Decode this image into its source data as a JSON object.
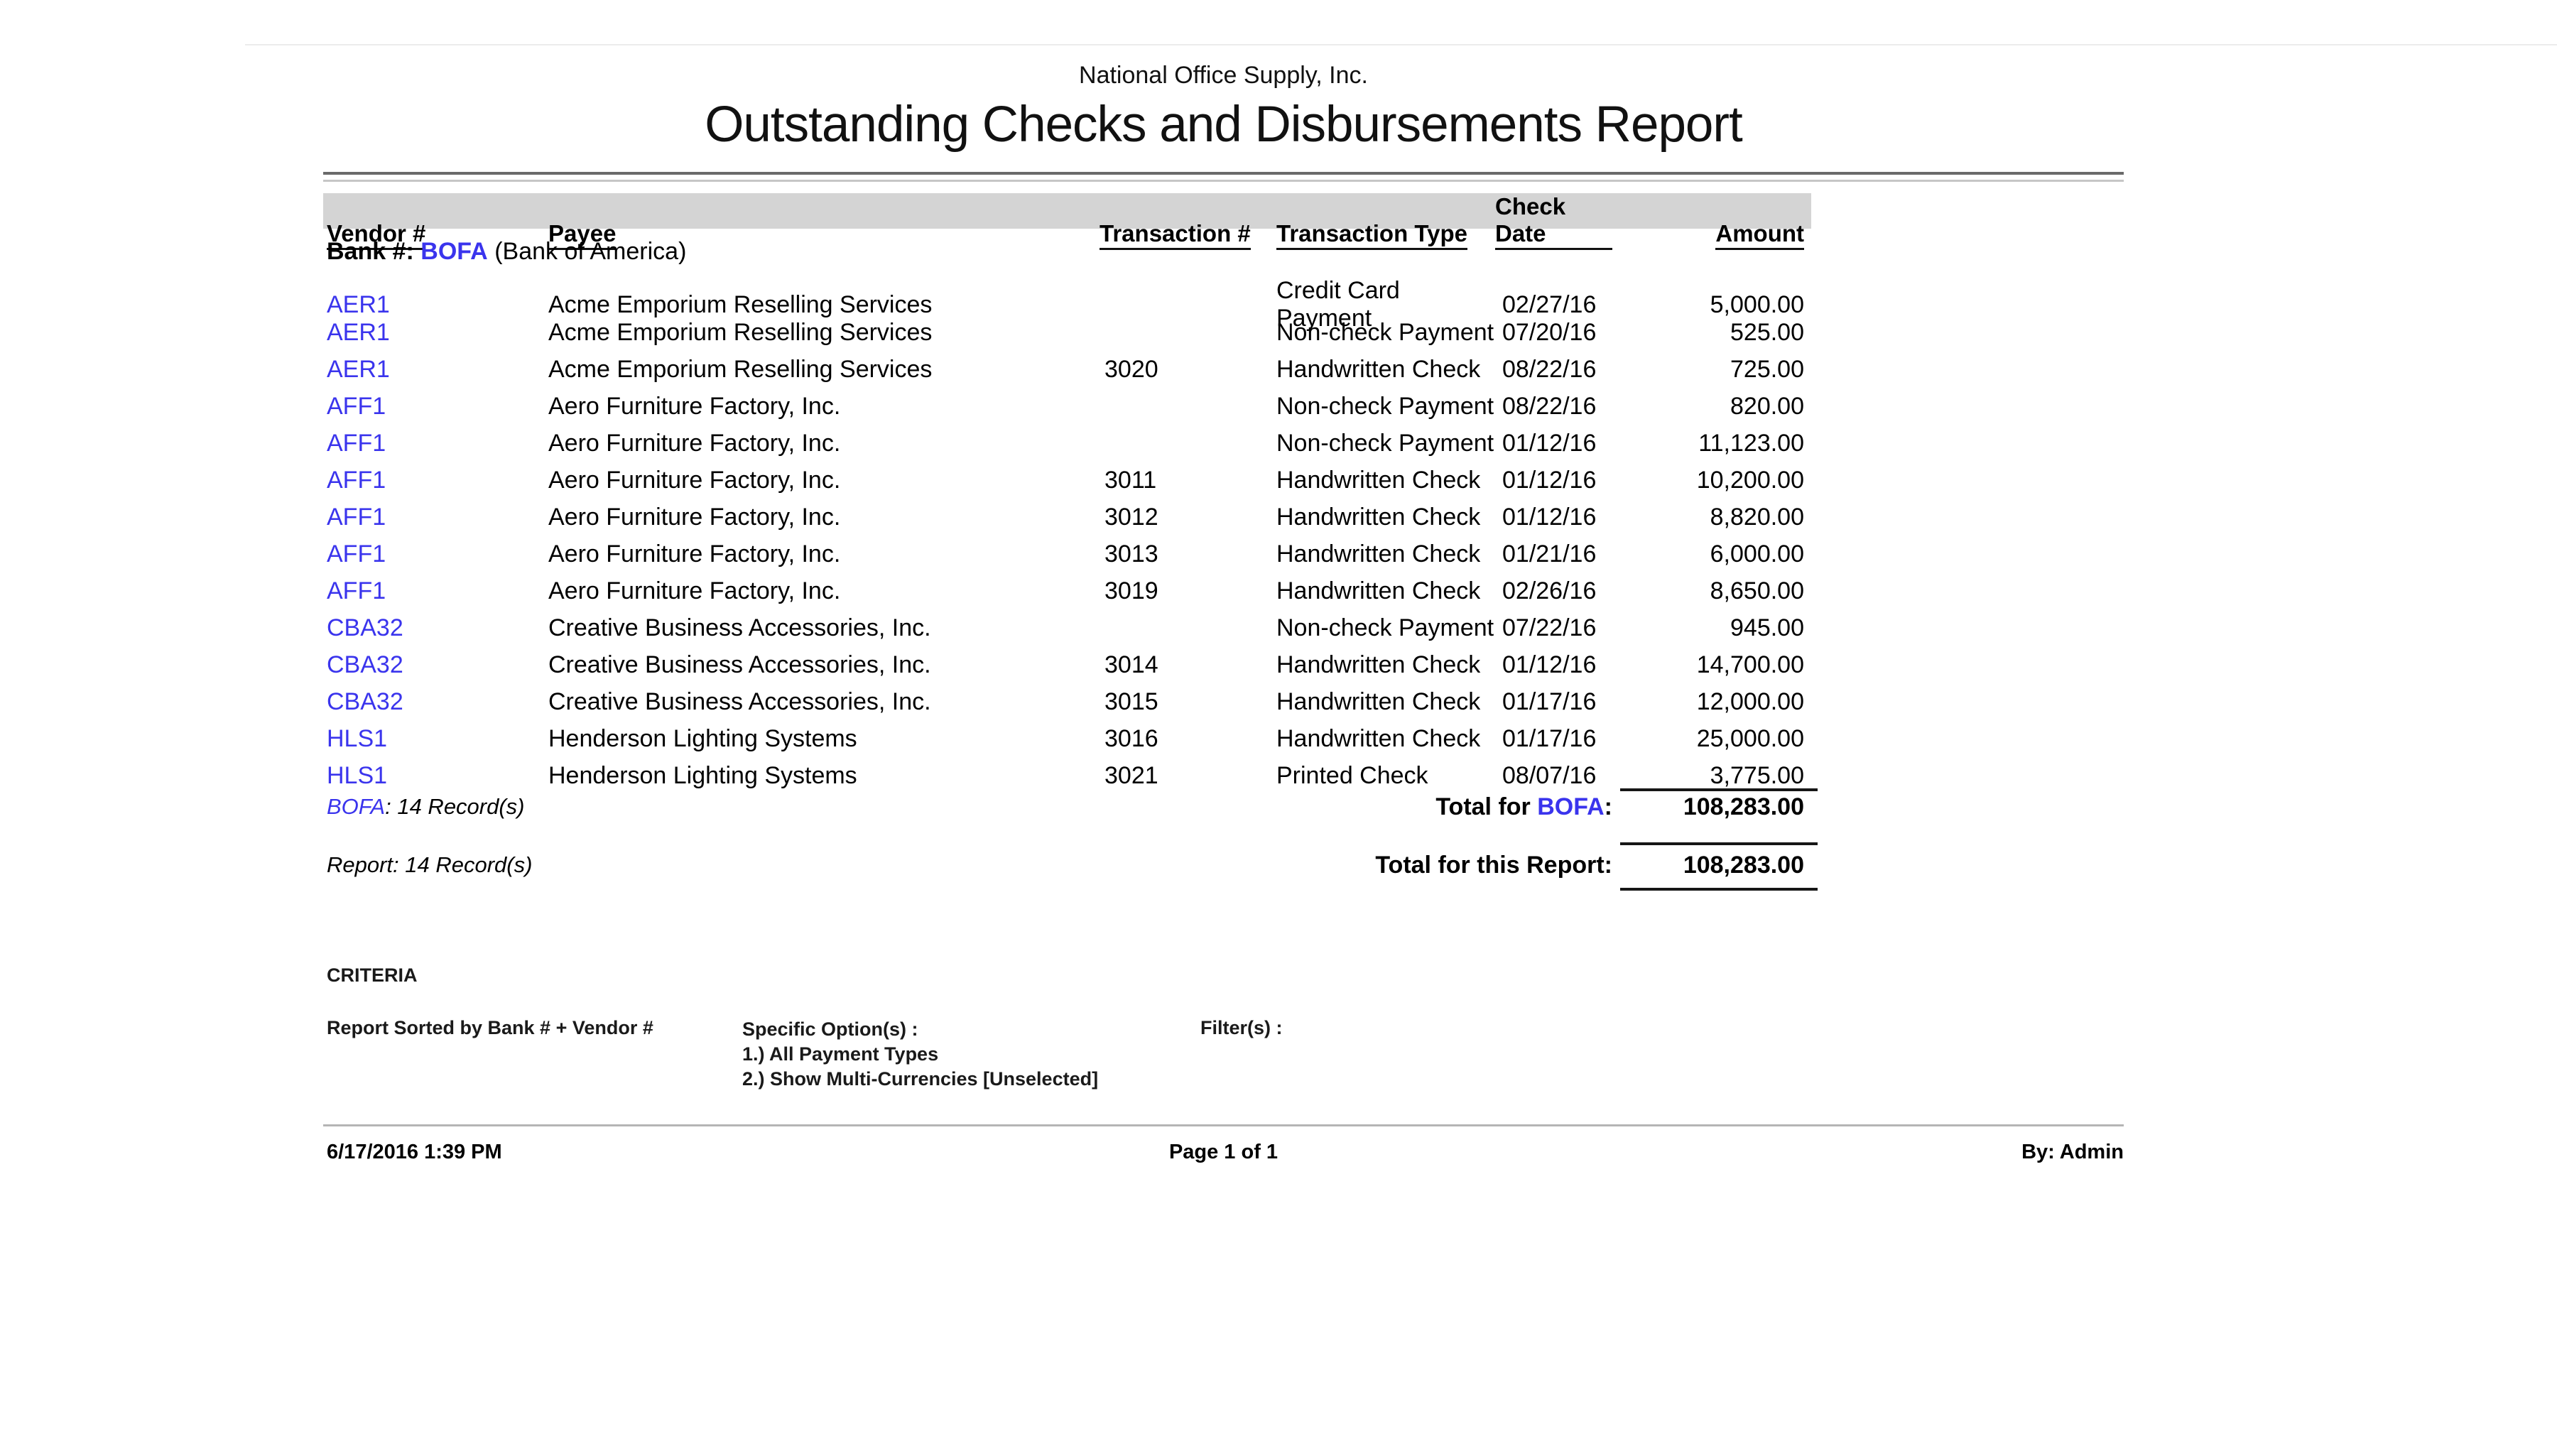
{
  "report": {
    "company": "National Office Supply, Inc.",
    "title": "Outstanding Checks and Disbursements Report",
    "columns": [
      "Vendor #",
      "Payee",
      "Transaction #",
      "Transaction Type",
      "Check Date",
      "Amount"
    ],
    "bank_group": {
      "prefix": "Bank #:",
      "code": "BOFA",
      "name": "(Bank of America)"
    },
    "rows": [
      {
        "vendor": "AER1",
        "payee": "Acme Emporium Reselling Services",
        "txn": "",
        "type": "Credit Card Payment",
        "date": "02/27/16",
        "amount": "5,000.00"
      },
      {
        "vendor": "AER1",
        "payee": "Acme Emporium Reselling Services",
        "txn": "",
        "type": "Non-check Payment",
        "date": "07/20/16",
        "amount": "525.00"
      },
      {
        "vendor": "AER1",
        "payee": "Acme Emporium Reselling Services",
        "txn": "3020",
        "type": "Handwritten Check",
        "date": "08/22/16",
        "amount": "725.00"
      },
      {
        "vendor": "AFF1",
        "payee": "Aero Furniture Factory, Inc.",
        "txn": "",
        "type": "Non-check Payment",
        "date": "08/22/16",
        "amount": "820.00"
      },
      {
        "vendor": "AFF1",
        "payee": "Aero Furniture Factory, Inc.",
        "txn": "",
        "type": "Non-check Payment",
        "date": "01/12/16",
        "amount": "11,123.00"
      },
      {
        "vendor": "AFF1",
        "payee": "Aero Furniture Factory, Inc.",
        "txn": "3011",
        "type": "Handwritten Check",
        "date": "01/12/16",
        "amount": "10,200.00"
      },
      {
        "vendor": "AFF1",
        "payee": "Aero Furniture Factory, Inc.",
        "txn": "3012",
        "type": "Handwritten Check",
        "date": "01/12/16",
        "amount": "8,820.00"
      },
      {
        "vendor": "AFF1",
        "payee": "Aero Furniture Factory, Inc.",
        "txn": "3013",
        "type": "Handwritten Check",
        "date": "01/21/16",
        "amount": "6,000.00"
      },
      {
        "vendor": "AFF1",
        "payee": "Aero Furniture Factory, Inc.",
        "txn": "3019",
        "type": "Handwritten Check",
        "date": "02/26/16",
        "amount": "8,650.00"
      },
      {
        "vendor": "CBA32",
        "payee": "Creative Business Accessories, Inc.",
        "txn": "",
        "type": "Non-check Payment",
        "date": "07/22/16",
        "amount": "945.00"
      },
      {
        "vendor": "CBA32",
        "payee": "Creative Business Accessories, Inc.",
        "txn": "3014",
        "type": "Handwritten Check",
        "date": "01/12/16",
        "amount": "14,700.00"
      },
      {
        "vendor": "CBA32",
        "payee": "Creative Business Accessories, Inc.",
        "txn": "3015",
        "type": "Handwritten Check",
        "date": "01/17/16",
        "amount": "12,000.00"
      },
      {
        "vendor": "HLS1",
        "payee": "Henderson Lighting Systems",
        "txn": "3016",
        "type": "Handwritten Check",
        "date": "01/17/16",
        "amount": "25,000.00"
      },
      {
        "vendor": "HLS1",
        "payee": "Henderson Lighting Systems",
        "txn": "3021",
        "type": "Printed Check",
        "date": "08/07/16",
        "amount": "3,775.00"
      }
    ],
    "group_total": {
      "records_code": "BOFA",
      "records_rest": ": 14 Record(s)",
      "label_prefix": "Total for ",
      "label_code": "BOFA",
      "label_suffix": ":",
      "amount": "108,283.00"
    },
    "report_total": {
      "records": "Report: 14 Record(s)",
      "label": "Total for this Report:",
      "amount": "108,283.00"
    },
    "criteria": {
      "title": "CRITERIA",
      "sorted_by": "Report Sorted by Bank # + Vendor #",
      "options_label": "Specific Option(s) :",
      "options": [
        "1.) All Payment Types",
        "2.) Show Multi-Currencies [Unselected]"
      ],
      "filters_label": "Filter(s) :"
    },
    "footer": {
      "datetime": "6/17/2016 1:39 PM",
      "page": "Page 1 of 1",
      "by": "By: Admin"
    },
    "colors": {
      "link_blue": "#3a34ed",
      "header_band": "#d4d4d4"
    }
  }
}
